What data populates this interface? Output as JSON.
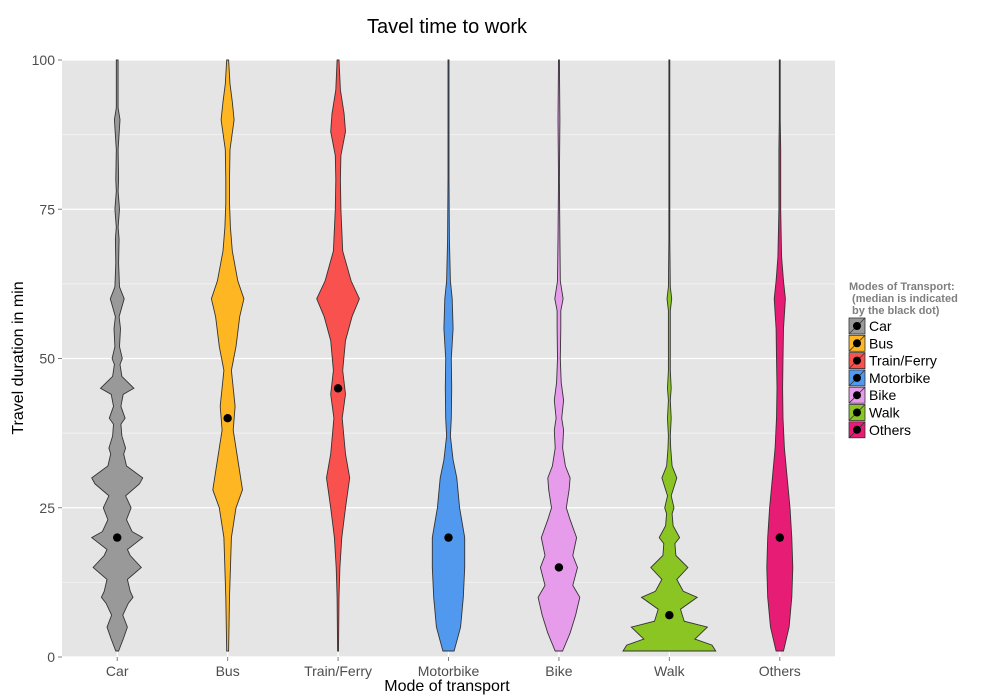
{
  "chart_data": {
    "type": "violin",
    "title": "Tavel time to work",
    "xlabel": "Mode of transport",
    "ylabel": "Travel duration in min",
    "ylim": [
      0,
      100
    ],
    "yticks": [
      0,
      25,
      50,
      75,
      100
    ],
    "grid": true,
    "legend_position": "right",
    "legend": {
      "title_lines": [
        "Modes of Transport:",
        " (median is indicated",
        " by the black dot)"
      ]
    },
    "categories": [
      "Car",
      "Bus",
      "Train/Ferry",
      "Motorbike",
      "Bike",
      "Walk",
      "Others"
    ],
    "series": [
      {
        "name": "Car",
        "color": "#999999",
        "median": 20,
        "range": [
          1,
          100
        ],
        "profile": [
          [
            1,
            0.03
          ],
          [
            3,
            0.13
          ],
          [
            5,
            0.22
          ],
          [
            7,
            0.12
          ],
          [
            9,
            0.24
          ],
          [
            10,
            0.34
          ],
          [
            11,
            0.28
          ],
          [
            13,
            0.22
          ],
          [
            15,
            0.52
          ],
          [
            17,
            0.28
          ],
          [
            18,
            0.22
          ],
          [
            20,
            0.55
          ],
          [
            21,
            0.32
          ],
          [
            23,
            0.2
          ],
          [
            25,
            0.3
          ],
          [
            27,
            0.18
          ],
          [
            29,
            0.48
          ],
          [
            30,
            0.55
          ],
          [
            32,
            0.2
          ],
          [
            34,
            0.14
          ],
          [
            35,
            0.18
          ],
          [
            37,
            0.1
          ],
          [
            39,
            0.08
          ],
          [
            40,
            0.17
          ],
          [
            42,
            0.08
          ],
          [
            44,
            0.13
          ],
          [
            45,
            0.36
          ],
          [
            47,
            0.1
          ],
          [
            49,
            0.06
          ],
          [
            50,
            0.11
          ],
          [
            52,
            0.05
          ],
          [
            55,
            0.07
          ],
          [
            57,
            0.04
          ],
          [
            60,
            0.15
          ],
          [
            62,
            0.05
          ],
          [
            66,
            0.03
          ],
          [
            70,
            0.04
          ],
          [
            72,
            0.02
          ],
          [
            75,
            0.05
          ],
          [
            78,
            0.02
          ],
          [
            80,
            0.03
          ],
          [
            85,
            0.02
          ],
          [
            90,
            0.06
          ],
          [
            92,
            0.02
          ],
          [
            100,
            0.02
          ]
        ]
      },
      {
        "name": "Bus",
        "color": "#ffb623",
        "median": 40,
        "range": [
          1,
          100
        ],
        "profile": [
          [
            1,
            0.02
          ],
          [
            10,
            0.04
          ],
          [
            20,
            0.08
          ],
          [
            25,
            0.18
          ],
          [
            28,
            0.32
          ],
          [
            32,
            0.24
          ],
          [
            38,
            0.12
          ],
          [
            42,
            0.16
          ],
          [
            48,
            0.08
          ],
          [
            52,
            0.18
          ],
          [
            57,
            0.26
          ],
          [
            60,
            0.35
          ],
          [
            63,
            0.22
          ],
          [
            68,
            0.1
          ],
          [
            72,
            0.06
          ],
          [
            76,
            0.04
          ],
          [
            80,
            0.04
          ],
          [
            85,
            0.05
          ],
          [
            90,
            0.14
          ],
          [
            93,
            0.1
          ],
          [
            96,
            0.05
          ],
          [
            100,
            0.02
          ]
        ]
      },
      {
        "name": "Train/Ferry",
        "color": "#f9514e",
        "median": 45,
        "range": [
          1,
          100
        ],
        "profile": [
          [
            1,
            0.01
          ],
          [
            10,
            0.02
          ],
          [
            15,
            0.04
          ],
          [
            20,
            0.08
          ],
          [
            25,
            0.16
          ],
          [
            30,
            0.25
          ],
          [
            34,
            0.16
          ],
          [
            40,
            0.09
          ],
          [
            44,
            0.16
          ],
          [
            48,
            0.1
          ],
          [
            53,
            0.16
          ],
          [
            57,
            0.3
          ],
          [
            60,
            0.46
          ],
          [
            63,
            0.28
          ],
          [
            68,
            0.1
          ],
          [
            75,
            0.06
          ],
          [
            80,
            0.05
          ],
          [
            84,
            0.06
          ],
          [
            88,
            0.16
          ],
          [
            91,
            0.13
          ],
          [
            95,
            0.05
          ],
          [
            100,
            0.02
          ]
        ]
      },
      {
        "name": "Motorbike",
        "color": "#5199ef",
        "median": 20,
        "range": [
          1,
          100
        ],
        "profile": [
          [
            1,
            0.12
          ],
          [
            5,
            0.26
          ],
          [
            10,
            0.32
          ],
          [
            15,
            0.35
          ],
          [
            20,
            0.35
          ],
          [
            25,
            0.24
          ],
          [
            30,
            0.18
          ],
          [
            33,
            0.1
          ],
          [
            37,
            0.04
          ],
          [
            40,
            0.06
          ],
          [
            45,
            0.07
          ],
          [
            50,
            0.06
          ],
          [
            55,
            0.1
          ],
          [
            60,
            0.08
          ],
          [
            63,
            0.04
          ],
          [
            70,
            0.02
          ],
          [
            80,
            0.01
          ],
          [
            100,
            0.01
          ]
        ]
      },
      {
        "name": "Bike",
        "color": "#e69ceb",
        "median": 15,
        "range": [
          1,
          100
        ],
        "profile": [
          [
            1,
            0.08
          ],
          [
            4,
            0.24
          ],
          [
            7,
            0.36
          ],
          [
            10,
            0.45
          ],
          [
            12,
            0.3
          ],
          [
            15,
            0.4
          ],
          [
            17,
            0.3
          ],
          [
            20,
            0.38
          ],
          [
            23,
            0.24
          ],
          [
            25,
            0.16
          ],
          [
            28,
            0.22
          ],
          [
            30,
            0.24
          ],
          [
            32,
            0.14
          ],
          [
            35,
            0.08
          ],
          [
            38,
            0.1
          ],
          [
            40,
            0.06
          ],
          [
            43,
            0.1
          ],
          [
            46,
            0.05
          ],
          [
            50,
            0.03
          ],
          [
            55,
            0.04
          ],
          [
            58,
            0.04
          ],
          [
            60,
            0.09
          ],
          [
            63,
            0.03
          ],
          [
            70,
            0.02
          ],
          [
            80,
            0.01
          ],
          [
            90,
            0.02
          ],
          [
            100,
            0.01
          ]
        ]
      },
      {
        "name": "Walk",
        "color": "#8ac523",
        "median": 7,
        "range": [
          1,
          100
        ],
        "profile": [
          [
            1,
            1.0
          ],
          [
            2,
            0.92
          ],
          [
            3,
            0.55
          ],
          [
            5,
            0.82
          ],
          [
            6,
            0.32
          ],
          [
            8,
            0.24
          ],
          [
            10,
            0.6
          ],
          [
            11,
            0.3
          ],
          [
            13,
            0.16
          ],
          [
            15,
            0.4
          ],
          [
            17,
            0.14
          ],
          [
            19,
            0.12
          ],
          [
            20,
            0.22
          ],
          [
            22,
            0.08
          ],
          [
            24,
            0.06
          ],
          [
            25,
            0.1
          ],
          [
            27,
            0.04
          ],
          [
            28,
            0.08
          ],
          [
            30,
            0.16
          ],
          [
            32,
            0.06
          ],
          [
            35,
            0.03
          ],
          [
            37,
            0.02
          ],
          [
            40,
            0.04
          ],
          [
            43,
            0.02
          ],
          [
            45,
            0.04
          ],
          [
            48,
            0.02
          ],
          [
            50,
            0.02
          ],
          [
            55,
            0.02
          ],
          [
            58,
            0.02
          ],
          [
            60,
            0.05
          ],
          [
            62,
            0.02
          ],
          [
            70,
            0.01
          ],
          [
            80,
            0.01
          ],
          [
            90,
            0.01
          ],
          [
            100,
            0.01
          ]
        ]
      },
      {
        "name": "Others",
        "color": "#e71c75",
        "median": 20,
        "range": [
          1,
          100
        ],
        "profile": [
          [
            1,
            0.08
          ],
          [
            5,
            0.2
          ],
          [
            10,
            0.26
          ],
          [
            15,
            0.28
          ],
          [
            20,
            0.26
          ],
          [
            25,
            0.22
          ],
          [
            30,
            0.16
          ],
          [
            35,
            0.1
          ],
          [
            40,
            0.07
          ],
          [
            45,
            0.06
          ],
          [
            50,
            0.07
          ],
          [
            55,
            0.08
          ],
          [
            60,
            0.12
          ],
          [
            63,
            0.08
          ],
          [
            67,
            0.04
          ],
          [
            75,
            0.02
          ],
          [
            85,
            0.02
          ],
          [
            90,
            0.01
          ],
          [
            100,
            0.01
          ]
        ]
      }
    ]
  }
}
